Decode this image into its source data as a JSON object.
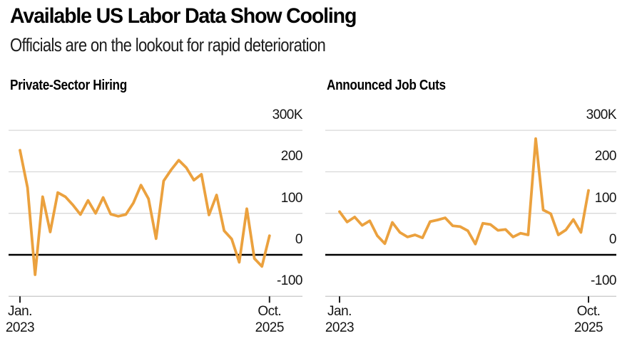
{
  "header": {
    "title": "Available US Labor Data Show Cooling",
    "subtitle": "Officials are on the lookout for rapid deterioration"
  },
  "chart_data": [
    {
      "id": "private-sector-hiring",
      "type": "line",
      "title": "Private-Sector Hiring",
      "unit": "thousands of jobs (K)",
      "x_interval": "monthly",
      "x": [
        "2023-01",
        "2023-02",
        "2023-03",
        "2023-04",
        "2023-05",
        "2023-06",
        "2023-07",
        "2023-08",
        "2023-09",
        "2023-10",
        "2023-11",
        "2023-12",
        "2024-01",
        "2024-02",
        "2024-03",
        "2024-04",
        "2024-05",
        "2024-06",
        "2024-07",
        "2024-08",
        "2024-09",
        "2024-10",
        "2024-11",
        "2024-12",
        "2025-01",
        "2025-02",
        "2025-03",
        "2025-04",
        "2025-05",
        "2025-06",
        "2025-07",
        "2025-08",
        "2025-09",
        "2025-10"
      ],
      "values": [
        252,
        162,
        -48,
        140,
        55,
        150,
        140,
        120,
        97,
        131,
        100,
        138,
        98,
        93,
        97,
        125,
        168,
        135,
        39,
        178,
        205,
        228,
        210,
        180,
        194,
        96,
        144,
        58,
        38,
        -18,
        111,
        -9,
        -28,
        46
      ],
      "ylim": [
        -100,
        300
      ],
      "y_ticks": [
        {
          "value": 300,
          "label": "300K"
        },
        {
          "value": 200,
          "label": "200"
        },
        {
          "value": 100,
          "label": "100"
        },
        {
          "value": 0,
          "label": "0"
        },
        {
          "value": -100,
          "label": "-100"
        }
      ],
      "x_ticks": [
        {
          "index": 0,
          "label_line1": "Jan.",
          "label_line2": "2023"
        },
        {
          "index": 33,
          "label_line1": "Oct.",
          "label_line2": "2025"
        }
      ],
      "grid": "horizontal",
      "legend": "none",
      "line_color": "#EBA13E",
      "grid_color": "#D8D8D8",
      "axis_line_color": "#CCCCCC",
      "zero_line_color": "#000000",
      "tick_color": "#222222"
    },
    {
      "id": "announced-job-cuts",
      "type": "line",
      "title": "Announced Job Cuts",
      "unit": "thousands of jobs (K)",
      "x_interval": "monthly",
      "x": [
        "2023-01",
        "2023-02",
        "2023-03",
        "2023-04",
        "2023-05",
        "2023-06",
        "2023-07",
        "2023-08",
        "2023-09",
        "2023-10",
        "2023-11",
        "2023-12",
        "2024-01",
        "2024-02",
        "2024-03",
        "2024-04",
        "2024-05",
        "2024-06",
        "2024-07",
        "2024-08",
        "2024-09",
        "2024-10",
        "2024-11",
        "2024-12",
        "2025-01",
        "2025-02",
        "2025-03",
        "2025-04",
        "2025-05",
        "2025-06",
        "2025-07",
        "2025-08",
        "2025-09",
        "2025-10"
      ],
      "values": [
        104,
        79,
        91,
        71,
        82,
        46,
        27,
        78,
        54,
        43,
        48,
        41,
        80,
        84,
        89,
        70,
        68,
        58,
        26,
        76,
        73,
        59,
        61,
        43,
        52,
        48,
        280,
        108,
        99,
        48,
        60,
        85,
        54,
        155
      ],
      "ylim": [
        -100,
        300
      ],
      "y_ticks": [
        {
          "value": 300,
          "label": "300K"
        },
        {
          "value": 200,
          "label": "200"
        },
        {
          "value": 100,
          "label": "100"
        },
        {
          "value": 0,
          "label": "0"
        },
        {
          "value": -100,
          "label": "-100"
        }
      ],
      "x_ticks": [
        {
          "index": 0,
          "label_line1": "Jan.",
          "label_line2": "2023"
        },
        {
          "index": 33,
          "label_line1": "Oct.",
          "label_line2": "2025"
        }
      ],
      "grid": "horizontal",
      "legend": "none",
      "line_color": "#EBA13E",
      "grid_color": "#D8D8D8",
      "axis_line_color": "#CCCCCC",
      "zero_line_color": "#000000",
      "tick_color": "#222222"
    }
  ]
}
